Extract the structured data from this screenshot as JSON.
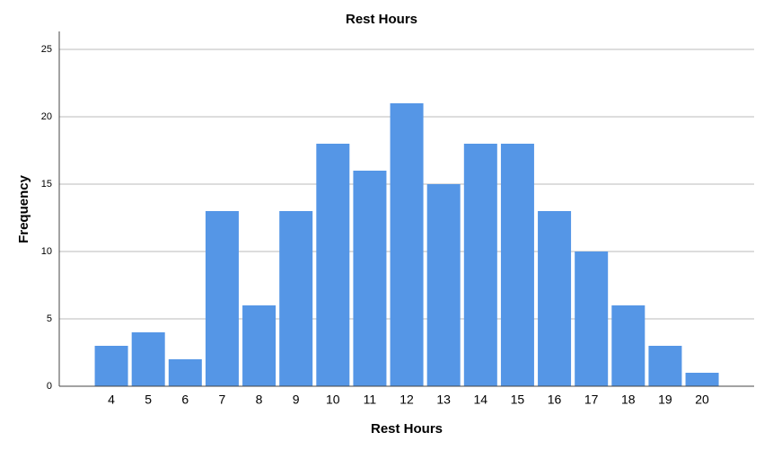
{
  "chart_data": {
    "type": "bar",
    "title": "Rest Hours",
    "x_label": "Rest Hours",
    "y_label": "Frequency",
    "categories": [
      "4",
      "5",
      "6",
      "7",
      "8",
      "9",
      "10",
      "11",
      "12",
      "13",
      "14",
      "15",
      "16",
      "17",
      "18",
      "19",
      "20"
    ],
    "values": [
      3,
      4,
      2,
      13,
      6,
      13,
      18,
      16,
      21,
      15,
      18,
      18,
      13,
      10,
      6,
      3,
      1
    ],
    "color": "#5596e6",
    "ylim": [
      0,
      25
    ],
    "yticks": [
      0,
      5,
      10,
      15,
      20,
      25
    ],
    "grid": true
  }
}
